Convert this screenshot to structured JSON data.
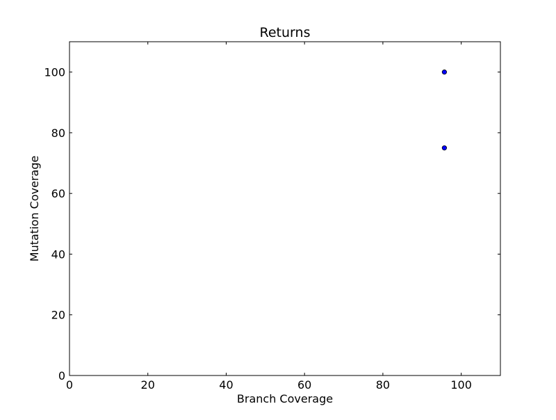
{
  "chart_data": {
    "type": "scatter",
    "title": "Returns",
    "xlabel": "Branch Coverage",
    "ylabel": "Mutation Coverage",
    "xlim": [
      0,
      110
    ],
    "ylim": [
      0,
      110
    ],
    "xticks": [
      0,
      20,
      40,
      60,
      80,
      100
    ],
    "yticks": [
      0,
      20,
      40,
      60,
      80,
      100
    ],
    "grid": false,
    "series": [
      {
        "points": [
          {
            "x": 95.7,
            "y": 100
          },
          {
            "x": 95.7,
            "y": 75
          }
        ],
        "color": "#0000ff",
        "edge_color": "#000000"
      }
    ]
  }
}
